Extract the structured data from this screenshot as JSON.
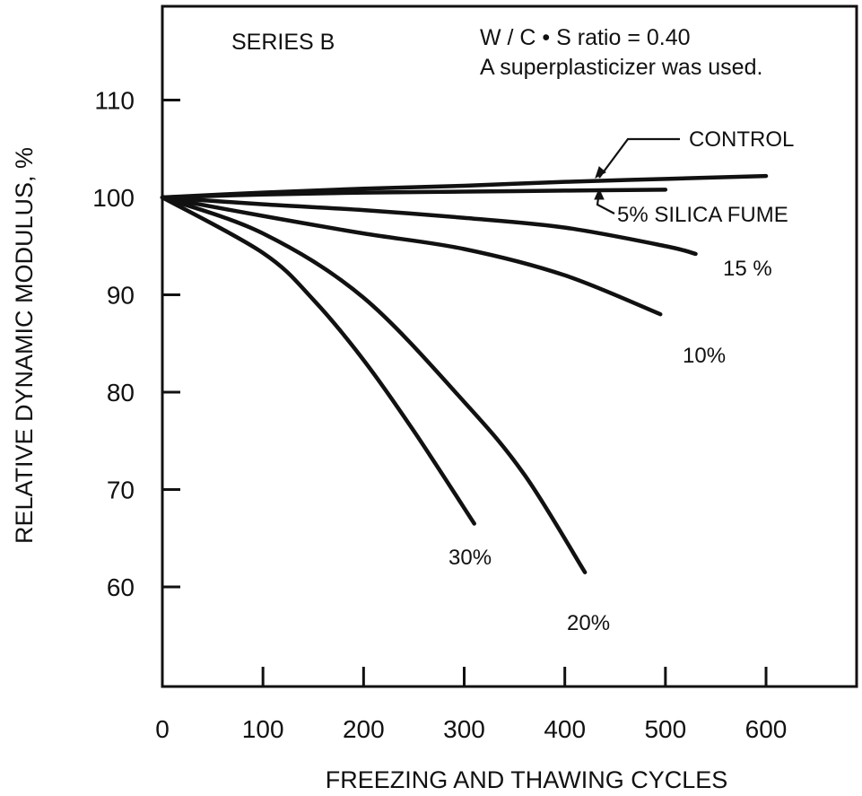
{
  "chart_data": {
    "type": "line",
    "series_label": "SERIES B",
    "annotation_line1": "W / C • S  ratio = 0.40",
    "annotation_line2": "A superplasticizer was used.",
    "xlabel": "FREEZING AND THAWING CYCLES",
    "ylabel": "RELATIVE DYNAMIC MODULUS, %",
    "xlim": [
      0,
      690
    ],
    "ylim": [
      50,
      120
    ],
    "x_ticks": [
      0,
      100,
      200,
      300,
      400,
      500,
      600
    ],
    "y_ticks": [
      60,
      70,
      80,
      90,
      100,
      110
    ],
    "grid": false,
    "series": [
      {
        "name": "CONTROL",
        "x": [
          0,
          100,
          200,
          300,
          400,
          500,
          600
        ],
        "y": [
          100,
          100.5,
          100.9,
          101.2,
          101.6,
          101.9,
          102.2
        ]
      },
      {
        "name": "5% SILICA FUME",
        "x": [
          0,
          100,
          200,
          300,
          400,
          500
        ],
        "y": [
          100,
          100.3,
          100.5,
          100.6,
          100.7,
          100.8
        ]
      },
      {
        "name": "15 %",
        "x": [
          0,
          100,
          200,
          300,
          400,
          500,
          530
        ],
        "y": [
          100,
          99.3,
          98.7,
          97.9,
          96.9,
          95.0,
          94.2
        ]
      },
      {
        "name": "10%",
        "x": [
          0,
          100,
          200,
          300,
          400,
          495
        ],
        "y": [
          100,
          98.1,
          96.3,
          94.7,
          92.0,
          88.0
        ]
      },
      {
        "name": "20%",
        "x": [
          0,
          100,
          200,
          300,
          360,
          420
        ],
        "y": [
          100,
          96.3,
          89.7,
          79.0,
          71.5,
          61.5
        ]
      },
      {
        "name": "30%",
        "x": [
          0,
          100,
          150,
          200,
          250,
          310
        ],
        "y": [
          100,
          94.3,
          89.5,
          83.3,
          76.0,
          66.5
        ]
      }
    ]
  }
}
